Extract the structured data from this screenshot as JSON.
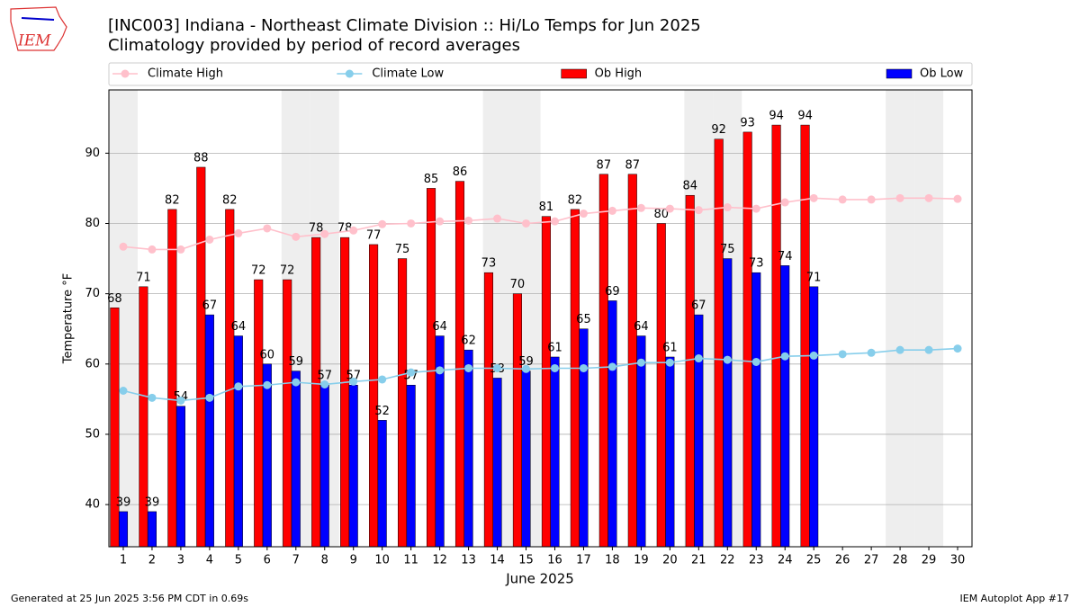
{
  "logo": "IEM",
  "footer_left": "Generated at 25 Jun 2025 3:56 PM CDT in 0.69s",
  "footer_right": "IEM Autoplot App #17",
  "chart_data": {
    "type": "combo",
    "title": "[INC003] Indiana - Northeast Climate Division :: Hi/Lo Temps for Jun 2025",
    "subtitle": "Climatology provided by period of record averages",
    "x_label": "June 2025",
    "y_label": "Temperature °F",
    "x": [
      1,
      2,
      3,
      4,
      5,
      6,
      7,
      8,
      9,
      10,
      11,
      12,
      13,
      14,
      15,
      16,
      17,
      18,
      19,
      20,
      21,
      22,
      23,
      24,
      25,
      26,
      27,
      28,
      29,
      30
    ],
    "xlim": [
      0.5,
      30.5
    ],
    "xticks": [
      1,
      2,
      3,
      4,
      5,
      6,
      7,
      8,
      9,
      10,
      11,
      12,
      13,
      14,
      15,
      16,
      17,
      18,
      19,
      20,
      21,
      22,
      23,
      24,
      25,
      26,
      27,
      28,
      29,
      30
    ],
    "ylim": [
      34,
      99
    ],
    "yticks": [
      40,
      50,
      60,
      70,
      80,
      90
    ],
    "grid": true,
    "legend": "top",
    "weekend_days": [
      1,
      7,
      8,
      14,
      15,
      21,
      22,
      28,
      29
    ],
    "series": [
      {
        "name": "Climate High",
        "type": "line",
        "color": "#ffc0cb",
        "values": [
          76.7,
          76.3,
          76.3,
          77.7,
          78.6,
          79.3,
          78.1,
          78.5,
          79.0,
          79.9,
          80.0,
          80.3,
          80.4,
          80.7,
          80.0,
          80.3,
          81.4,
          81.8,
          82.2,
          82.1,
          81.9,
          82.3,
          82.1,
          83.0,
          83.6,
          83.4,
          83.4,
          83.6,
          83.6,
          83.5
        ]
      },
      {
        "name": "Climate Low",
        "type": "line",
        "color": "#87ceeb",
        "values": [
          56.2,
          55.2,
          54.8,
          55.2,
          56.8,
          57.0,
          57.4,
          57.1,
          57.5,
          57.8,
          58.8,
          59.1,
          59.4,
          59.4,
          59.3,
          59.4,
          59.4,
          59.6,
          60.2,
          60.2,
          60.8,
          60.6,
          60.3,
          61.1,
          61.2,
          61.4,
          61.6,
          62.0,
          62.0,
          62.2
        ]
      },
      {
        "name": "Ob High",
        "type": "bar",
        "color": "#ff0000",
        "values": [
          68,
          71,
          82,
          88,
          82,
          72,
          72,
          78,
          78,
          77,
          75,
          85,
          86,
          73,
          70,
          81,
          82,
          87,
          87,
          80,
          84,
          92,
          93,
          94,
          94,
          null,
          null,
          null,
          null,
          null
        ]
      },
      {
        "name": "Ob Low",
        "type": "bar",
        "color": "#0000ff",
        "values": [
          39,
          39,
          54,
          67,
          64,
          60,
          59,
          57,
          57,
          52,
          57,
          64,
          62,
          58,
          59,
          61,
          65,
          69,
          64,
          61,
          67,
          75,
          73,
          74,
          71,
          null,
          null,
          null,
          null,
          null
        ]
      }
    ]
  }
}
